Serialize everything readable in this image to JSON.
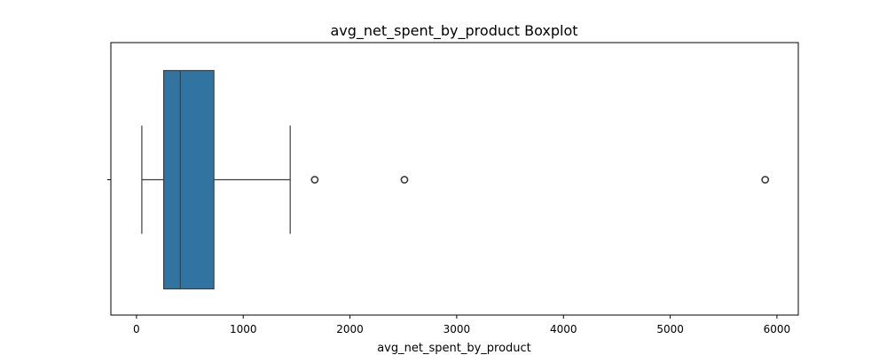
{
  "chart_data": {
    "type": "boxplot",
    "title": "avg_net_spent_by_product Boxplot",
    "xlabel": "avg_net_spent_by_product",
    "ylabel": "",
    "orientation": "horizontal",
    "xlim": [
      -240,
      6200
    ],
    "xticks": [
      0,
      1000,
      2000,
      3000,
      4000,
      5000,
      6000
    ],
    "xtick_labels": [
      "0",
      "1000",
      "2000",
      "3000",
      "4000",
      "5000",
      "6000"
    ],
    "grid": false,
    "box": {
      "whisker_low": 50,
      "q1": 255,
      "median": 410,
      "q3": 725,
      "whisker_high": 1440
    },
    "outliers": [
      1670,
      2510,
      5890
    ],
    "colors": {
      "box_fill": "#3274a1",
      "line": "#3d3d3d",
      "axis": "#000000"
    }
  }
}
